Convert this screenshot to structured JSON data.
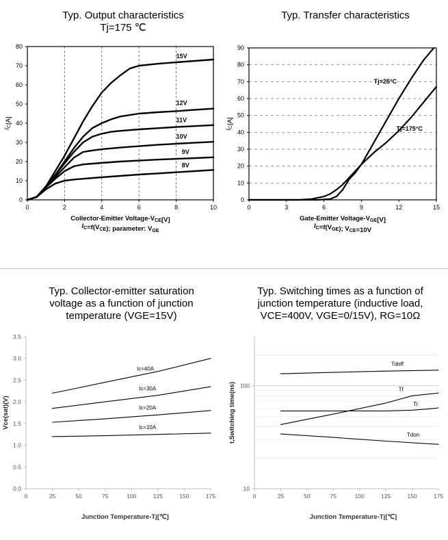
{
  "charts": [
    {
      "id": "output",
      "title_lines": [
        "Typ. Output characteristics",
        "Tj=175 ℃"
      ],
      "chart_data": {
        "type": "line",
        "title": "Typ. Output characteristics, Tj=175 ℃",
        "xlabel": "Collector-Emitter Voltage-VCE[V]",
        "xlabel2": "IC=f(VCE); parameter: VGE",
        "ylabel": "IC[A]",
        "xlim": [
          0,
          10
        ],
        "ylim": [
          0,
          80
        ],
        "xticks": [
          0,
          2,
          4,
          6,
          8,
          10
        ],
        "yticks": [
          0,
          10,
          20,
          30,
          40,
          50,
          60,
          70,
          80
        ],
        "grid": "vertical-dashed",
        "series": [
          {
            "name": "15V",
            "x": [
              0,
              0.5,
              1.0,
              1.5,
              2.0,
              2.5,
              3.0,
              3.5,
              4.0,
              4.5,
              5.0,
              5.5,
              6.0,
              7.0,
              8.0,
              9.0,
              10.0
            ],
            "y": [
              0,
              1.5,
              7,
              15,
              23,
              32,
              41,
              49,
              56,
              61,
              65,
              68.5,
              70,
              71,
              71.8,
              72.5,
              73.2
            ]
          },
          {
            "name": "12V",
            "x": [
              0,
              0.5,
              1.0,
              1.5,
              2.0,
              2.5,
              3.0,
              3.5,
              4.0,
              4.5,
              5.0,
              6.0,
              7.0,
              8.0,
              9.0,
              10.0
            ],
            "y": [
              0,
              1.5,
              7,
              13,
              20,
              27,
              33,
              37.5,
              40,
              42,
              43.5,
              45,
              45.7,
              46.3,
              47,
              47.6
            ]
          },
          {
            "name": "11V",
            "x": [
              0,
              0.5,
              1.0,
              1.5,
              2.0,
              2.5,
              3.0,
              3.5,
              4.0,
              4.5,
              5.0,
              6.0,
              7.0,
              8.0,
              9.0,
              10.0
            ],
            "y": [
              0,
              1.5,
              7,
              13,
              19,
              25,
              30,
              33,
              34.5,
              35.5,
              36,
              36.8,
              37.4,
              38,
              38.5,
              39
            ]
          },
          {
            "name": "10V",
            "x": [
              0,
              0.5,
              1.0,
              1.5,
              2.0,
              2.5,
              3.0,
              3.5,
              4.0,
              5.0,
              6.0,
              7.0,
              8.0,
              9.0,
              10.0
            ],
            "y": [
              0,
              1.5,
              7,
              12,
              17,
              22,
              25,
              25.8,
              26.4,
              27.3,
              28,
              28.7,
              29.3,
              29.8,
              30.3
            ]
          },
          {
            "name": "9V",
            "x": [
              0,
              0.5,
              1.0,
              1.5,
              2.0,
              2.5,
              3.0,
              4.0,
              5.0,
              6.0,
              7.0,
              8.0,
              9.0,
              10.0
            ],
            "y": [
              0,
              1.5,
              6.5,
              11,
              15,
              17.5,
              18.5,
              19.3,
              20,
              20.5,
              21,
              21.4,
              21.8,
              22.2
            ]
          },
          {
            "name": "8V",
            "x": [
              0,
              0.5,
              1.0,
              1.5,
              2.0,
              2.5,
              3.0,
              4.0,
              5.0,
              6.0,
              7.0,
              8.0,
              9.0,
              10.0
            ],
            "y": [
              0,
              1.5,
              5.5,
              8.5,
              10,
              10.6,
              11,
              11.8,
              12.5,
              13.2,
              13.8,
              14.4,
              15,
              15.6
            ]
          }
        ],
        "labels": [
          {
            "text": "15V",
            "x": 8.0,
            "y": 74
          },
          {
            "text": "12V",
            "x": 8.0,
            "y": 49.5
          },
          {
            "text": "11V",
            "x": 8.0,
            "y": 40.5
          },
          {
            "text": "10V",
            "x": 8.0,
            "y": 32
          },
          {
            "text": "9V",
            "x": 8.3,
            "y": 24
          },
          {
            "text": "8V",
            "x": 8.3,
            "y": 17
          }
        ]
      }
    },
    {
      "id": "transfer",
      "title_lines": [
        "Typ. Transfer characteristics"
      ],
      "chart_data": {
        "type": "line",
        "title": "Typ. Transfer characteristics",
        "xlabel": "Gate-Emitter Voltage-VGE[V]",
        "xlabel2": "IC=f(VGE); VCE=10V",
        "ylabel": "IC[A]",
        "xlim": [
          0,
          15
        ],
        "ylim": [
          0,
          90
        ],
        "xticks": [
          0,
          3,
          6,
          9,
          12,
          15
        ],
        "yticks": [
          0,
          10,
          20,
          30,
          40,
          50,
          60,
          70,
          80,
          90
        ],
        "grid": "horizontal-dashed",
        "series": [
          {
            "name": "Tj=25°C",
            "x": [
              0,
              5.5,
              6.5,
              7.0,
              7.5,
              8.0,
              8.5,
              9.0,
              10.0,
              11.0,
              12.0,
              13.0,
              14.0,
              14.8
            ],
            "y": [
              0,
              0,
              0.5,
              2,
              6,
              12,
              16,
              21,
              34,
              47,
              60,
              72,
              83,
              90
            ]
          },
          {
            "name": "Tj=175°C",
            "x": [
              0,
              4.0,
              5.0,
              6.0,
              6.5,
              7.0,
              7.5,
              8.0,
              8.5,
              9.0,
              10.0,
              11.0,
              12.0,
              13.0,
              14.0,
              15.0
            ],
            "y": [
              0,
              0,
              0.5,
              2,
              3.5,
              6,
              9,
              13,
              17,
              21,
              28,
              34,
              41,
              49,
              58,
              67
            ]
          }
        ],
        "labels": [
          {
            "text": "Tj=25°C",
            "x": 10.0,
            "y": 69
          },
          {
            "text": "Tj=175°C",
            "x": 11.8,
            "y": 41
          }
        ]
      }
    },
    {
      "id": "vcesat",
      "title_lines": [
        "Typ. Collector-emitter saturation",
        "voltage as a function of junction",
        "temperature (VGE=15V)"
      ],
      "chart_data": {
        "type": "line",
        "title": "Typ. Collector-emitter saturation voltage as a function of junction temperature (VGE=15V)",
        "xlabel": "Junction Temperature-Tj[℃]",
        "ylabel": "Vce(sat)(V)",
        "xlim": [
          0,
          175
        ],
        "ylim": [
          0.0,
          3.5
        ],
        "xticks": [
          0,
          25,
          50,
          75,
          100,
          125,
          150,
          175
        ],
        "yticks": [
          "0.0",
          "0.5",
          "1.0",
          "1.5",
          "2.0",
          "2.5",
          "3.0",
          "3.5"
        ],
        "grid": "none",
        "series": [
          {
            "name": "Ic=40A",
            "x": [
              25,
              75,
              125,
              175
            ],
            "y": [
              2.2,
              2.45,
              2.7,
              3.0
            ]
          },
          {
            "name": "Ic=30A",
            "x": [
              25,
              75,
              125,
              175
            ],
            "y": [
              1.85,
              2.0,
              2.15,
              2.35
            ]
          },
          {
            "name": "Ic=20A",
            "x": [
              25,
              75,
              125,
              175
            ],
            "y": [
              1.53,
              1.61,
              1.7,
              1.8
            ]
          },
          {
            "name": "Ic=10A",
            "x": [
              25,
              75,
              125,
              175
            ],
            "y": [
              1.2,
              1.22,
              1.25,
              1.28
            ]
          }
        ],
        "labels": [
          {
            "text": "Ic=40A",
            "x": 105,
            "y": 2.72
          },
          {
            "text": "Ic=30A",
            "x": 107,
            "y": 2.26
          },
          {
            "text": "Ic=20A",
            "x": 107,
            "y": 1.82
          },
          {
            "text": "Ic=10A",
            "x": 107,
            "y": 1.37
          }
        ]
      }
    },
    {
      "id": "switching",
      "title_lines": [
        "Typ. Switching times as a function of",
        "junction temperature (inductive load,",
        "VCE=400V, VGE=0/15V), RG=10Ω"
      ],
      "chart_data": {
        "type": "line",
        "title": "Typ. Switching times as a function of junction temperature (inductive load, VCE=400V, VGE=0/15V), RG=10Ω",
        "xlabel": "Junction Temperature-Tj[℃]",
        "ylabel": "t,Switching time(ns)",
        "xlim": [
          0,
          175
        ],
        "ylim": [
          10,
          300
        ],
        "yscale": "log",
        "xticks": [
          0,
          25,
          50,
          75,
          100,
          125,
          150,
          175
        ],
        "yticks": [
          10,
          100
        ],
        "grid": "log-minor-horizontal",
        "series": [
          {
            "name": "Tdoff",
            "x": [
              25,
              75,
              125,
              175
            ],
            "y": [
              131,
              135,
              139,
              142
            ]
          },
          {
            "name": "Tf",
            "x": [
              25,
              75,
              125,
              150,
              175
            ],
            "y": [
              42,
              53,
              68,
              80,
              85
            ]
          },
          {
            "name": "Tr",
            "x": [
              25,
              75,
              125,
              150,
              165,
              175
            ],
            "y": [
              57,
              57,
              57,
              58,
              59.5,
              61
            ]
          },
          {
            "name": "Tdon",
            "x": [
              25,
              75,
              125,
              175
            ],
            "y": [
              34,
              31.5,
              29,
              27
            ]
          }
        ],
        "labels": [
          {
            "text": "Tdoff",
            "x": 130,
            "y": 156
          },
          {
            "text": "Tf",
            "x": 137,
            "y": 89
          },
          {
            "text": "Tr",
            "x": 151,
            "y": 64
          },
          {
            "text": "Tdon",
            "x": 145,
            "y": 32
          }
        ]
      }
    }
  ]
}
